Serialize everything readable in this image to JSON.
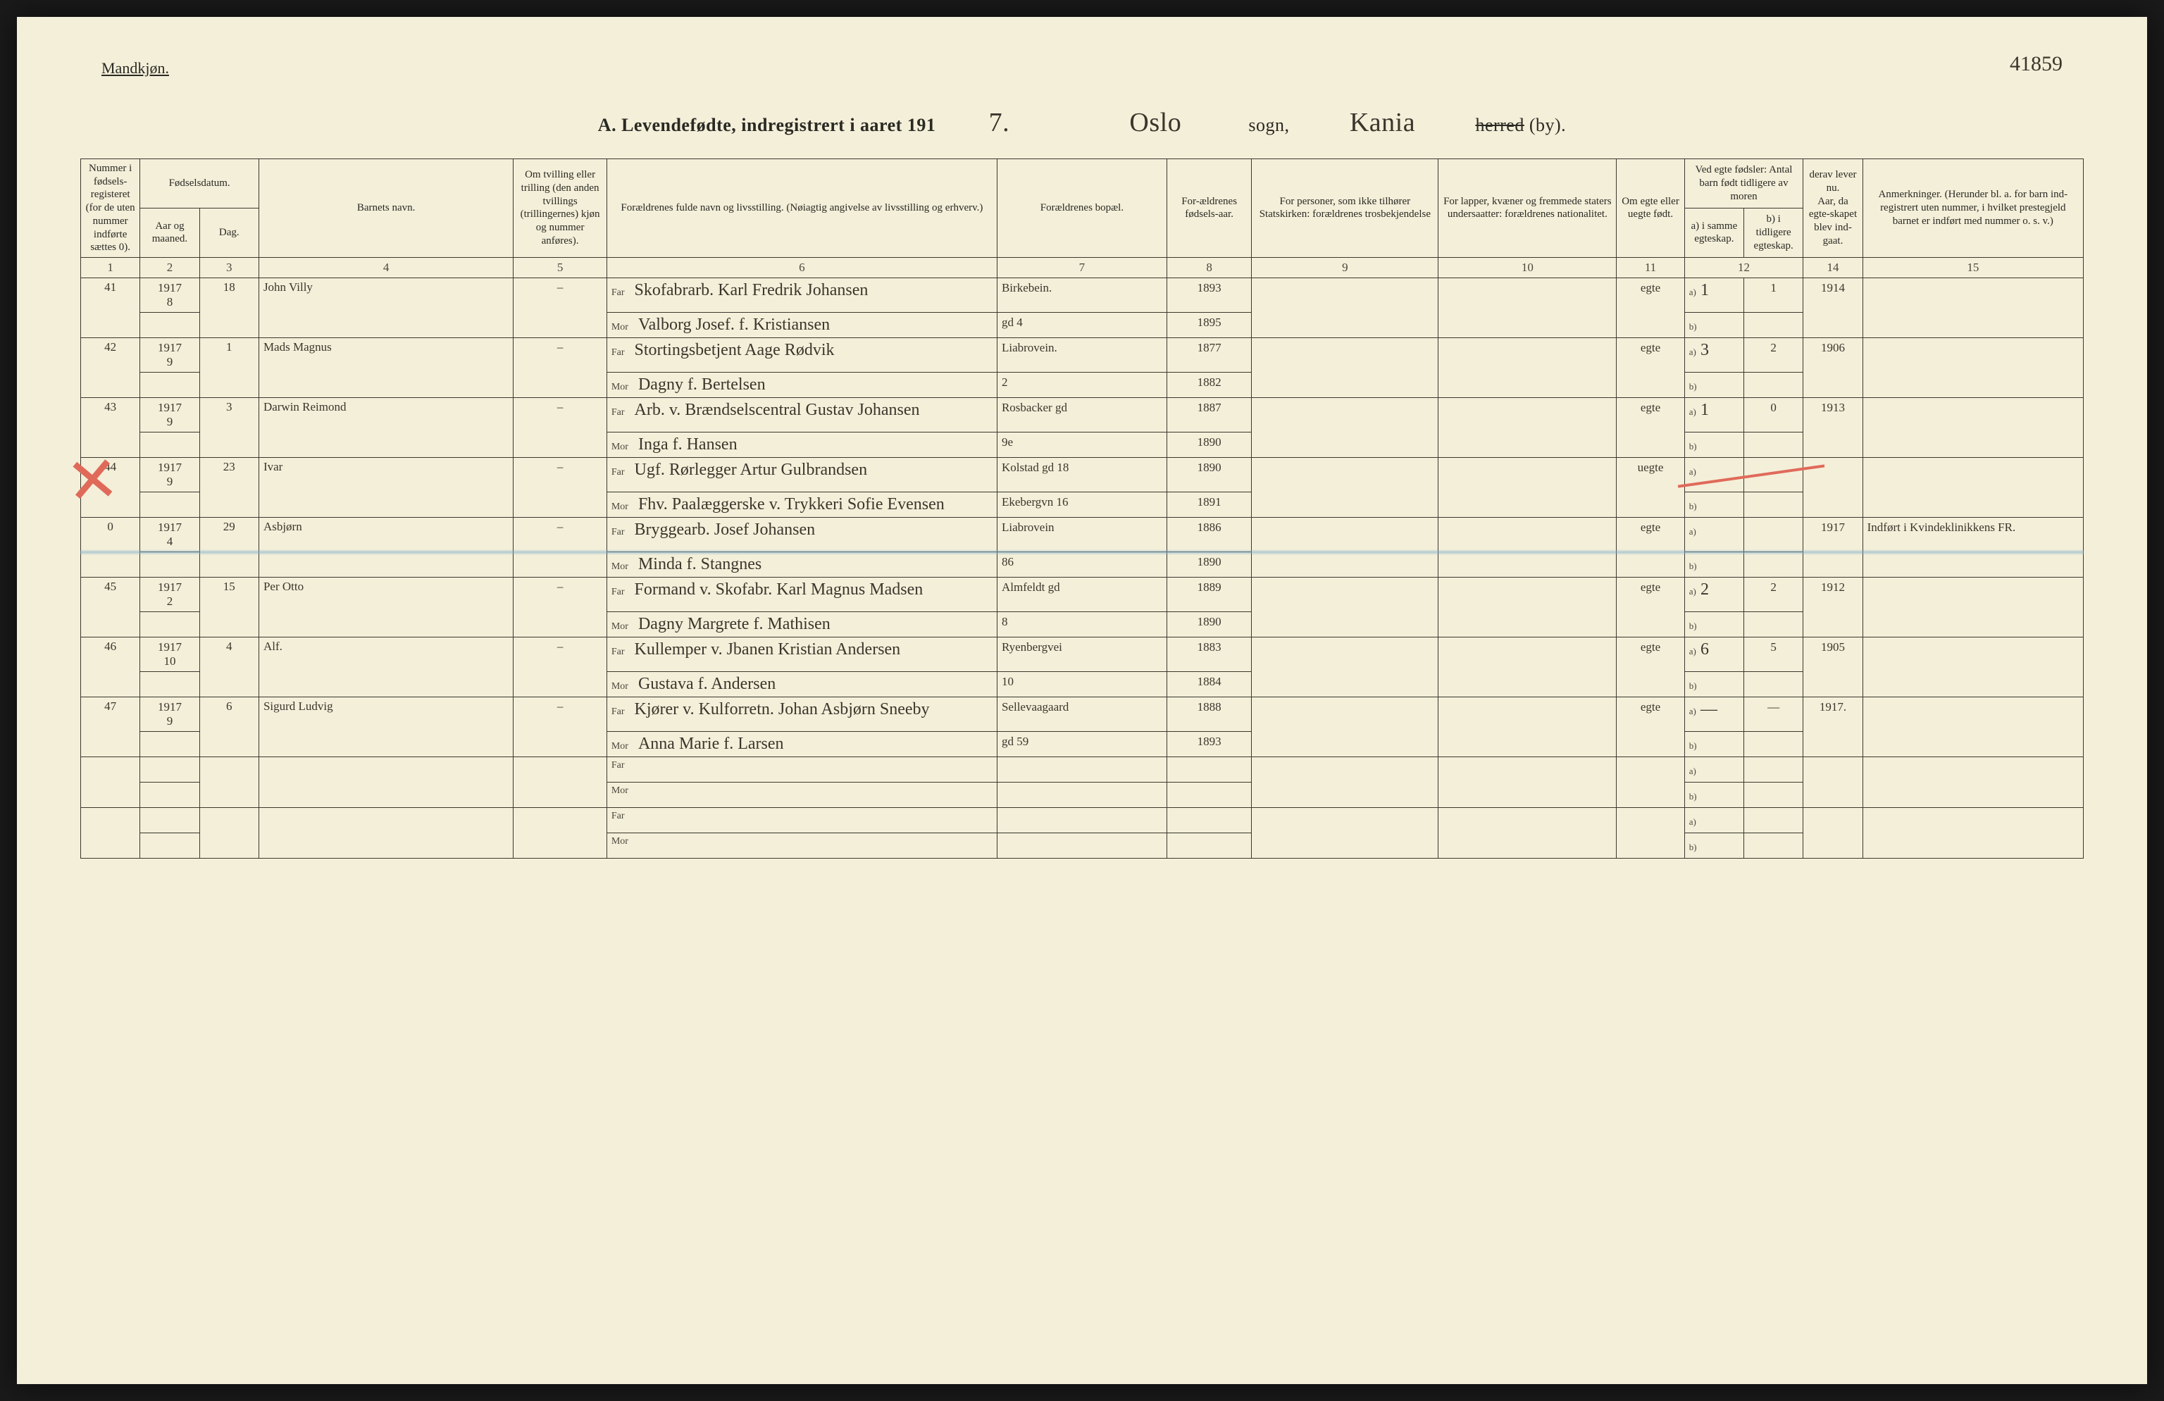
{
  "labels": {
    "mandkjon": "Mandkjøn.",
    "title_prefix": "A.  Levendefødte, indregistrert i aaret 191",
    "year_suffix": "7.",
    "sogn_word": "sogn,",
    "herred_word": "herred",
    "by_word": "(by).",
    "far": "Far",
    "mor": "Mor",
    "a_lbl": "a)",
    "b_lbl": "b)"
  },
  "title_handwritten": {
    "sogn": "Oslo",
    "herred": "Kania"
  },
  "page_number_hand": "41859",
  "headers": {
    "c1": "Nummer i fødsels-registeret (for de uten nummer indførte sættes 0).",
    "c2_group": "Fødselsdatum.",
    "c2": "Aar og maaned.",
    "c3": "Dag.",
    "c4": "Barnets navn.",
    "c5": "Om tvilling eller trilling (den anden tvillings (trillingernes) kjøn og nummer anføres).",
    "c6": "Forældrenes fulde navn og livsstilling. (Nøiagtig angivelse av livsstilling og erhverv.)",
    "c7": "Forældrenes bopæl.",
    "c8": "For-ældrenes fødsels-aar.",
    "c9": "For personer, som ikke tilhører Statskirken: forældrenes trosbekjendelse",
    "c10": "For lapper, kvæner og fremmede staters undersaatter: forældrenes nationalitet.",
    "c11": "Om egte eller uegte født.",
    "c12_group": "Ved egte fødsler: Antal barn født tidligere av moren",
    "c12a": "a) i samme egteskap.",
    "c12b": "b) i tidligere egteskap.",
    "c13": "derav lever nu.",
    "c14_top": "Aar, da egte-skapet blev ind-gaat.",
    "c15": "Anmerkninger. (Herunder bl. a. for barn ind-registrert uten nummer, i hvilket prestegjeld barnet er indført med nummer o. s. v.)"
  },
  "colnums": [
    "1",
    "2",
    "3",
    "4",
    "5",
    "6",
    "7",
    "8",
    "9",
    "10",
    "11",
    "12",
    "13",
    "14",
    "15"
  ],
  "rows": [
    {
      "num": "41",
      "year": "1917",
      "month": "8",
      "day": "18",
      "name": "John Villy",
      "twin": "–",
      "far": "Skofabrarb. Karl Fredrik Johansen",
      "far_addr": "Birkebein.",
      "far_year": "1893",
      "mor": "Valborg Josef. f. Kristiansen",
      "mor_addr": "gd 4",
      "mor_year": "1895",
      "c9": "",
      "c10": "",
      "egte": "egte",
      "a": "1",
      "a2": "1",
      "b": "",
      "aar": "1914",
      "anm": ""
    },
    {
      "num": "42",
      "year": "1917",
      "month": "9",
      "day": "1",
      "name": "Mads Magnus",
      "twin": "–",
      "far": "Stortingsbetjent Aage Rødvik",
      "far_addr": "Liabrovein.",
      "far_year": "1877",
      "mor": "Dagny f. Bertelsen",
      "mor_addr": "2",
      "mor_year": "1882",
      "c9": "",
      "c10": "",
      "egte": "egte",
      "a": "3",
      "a2": "2",
      "b": "",
      "aar": "1906",
      "anm": ""
    },
    {
      "num": "43",
      "year": "1917",
      "month": "9",
      "day": "3",
      "name": "Darwin Reimond",
      "twin": "–",
      "far": "Arb. v. Brændselscentral Gustav Johansen",
      "far_addr": "Rosbacker gd",
      "far_year": "1887",
      "mor": "Inga f. Hansen",
      "mor_addr": "9e",
      "mor_year": "1890",
      "c9": "",
      "c10": "",
      "egte": "egte",
      "a": "1",
      "a2": "0",
      "b": "",
      "aar": "1913",
      "anm": ""
    },
    {
      "num": "44",
      "year": "1917",
      "month": "9",
      "day": "23",
      "name": "Ivar",
      "twin": "–",
      "far": "Ugf. Rørlegger Artur Gulbrandsen",
      "far_addr": "Kolstad gd 18",
      "far_year": "1890",
      "mor": "Fhv. Paalæggerske v. Trykkeri Sofie Evensen",
      "mor_addr": "Ekebergvn 16",
      "mor_year": "1891",
      "c9": "",
      "c10": "",
      "egte": "uegte",
      "a": "",
      "a2": "",
      "b": "",
      "aar": "",
      "anm": ""
    },
    {
      "num": "0",
      "year": "1917",
      "month": "4",
      "day": "29",
      "name": "Asbjørn",
      "twin": "–",
      "far": "Bryggearb. Josef Johansen",
      "far_addr": "Liabrovein",
      "far_year": "1886",
      "mor": "Minda f. Stangnes",
      "mor_addr": "86",
      "mor_year": "1890",
      "c9": "",
      "c10": "",
      "egte": "egte",
      "a": "",
      "a2": "",
      "b": "",
      "aar": "1917",
      "anm": "Indført i Kvindeklinikkens FR."
    },
    {
      "num": "45",
      "year": "1917",
      "month": "2",
      "day": "15",
      "name": "Per Otto",
      "twin": "–",
      "far": "Formand v. Skofabr. Karl Magnus Madsen",
      "far_addr": "Almfeldt gd",
      "far_year": "1889",
      "mor": "Dagny Margrete f. Mathisen",
      "mor_addr": "8",
      "mor_year": "1890",
      "c9": "",
      "c10": "",
      "egte": "egte",
      "a": "2",
      "a2": "2",
      "b": "",
      "aar": "1912",
      "anm": ""
    },
    {
      "num": "46",
      "year": "1917",
      "month": "10",
      "day": "4",
      "name": "Alf.",
      "twin": "–",
      "far": "Kullemper v. Jbanen Kristian Andersen",
      "far_addr": "Ryenbergvei",
      "far_year": "1883",
      "mor": "Gustava f. Andersen",
      "mor_addr": "10",
      "mor_year": "1884",
      "c9": "",
      "c10": "",
      "egte": "egte",
      "a": "6",
      "a2": "5",
      "b": "",
      "aar": "1905",
      "anm": ""
    },
    {
      "num": "47",
      "year": "1917",
      "month": "9",
      "day": "6",
      "name": "Sigurd Ludvig",
      "twin": "–",
      "far": "Kjører v. Kulforretn. Johan Asbjørn Sneeby",
      "far_addr": "Sellevaagaard",
      "far_year": "1888",
      "mor": "Anna Marie f. Larsen",
      "mor_addr": "gd 59",
      "mor_year": "1893",
      "c9": "",
      "c10": "",
      "egte": "egte",
      "a": "—",
      "a2": "—",
      "b": "",
      "aar": "1917.",
      "anm": ""
    },
    {
      "num": "",
      "year": "",
      "month": "",
      "day": "",
      "name": "",
      "twin": "",
      "far": "",
      "far_addr": "",
      "far_year": "",
      "mor": "",
      "mor_addr": "",
      "mor_year": "",
      "c9": "",
      "c10": "",
      "egte": "",
      "a": "",
      "a2": "",
      "b": "",
      "aar": "",
      "anm": ""
    },
    {
      "num": "",
      "year": "",
      "month": "",
      "day": "",
      "name": "",
      "twin": "",
      "far": "",
      "far_addr": "",
      "far_year": "",
      "mor": "",
      "mor_addr": "",
      "mor_year": "",
      "c9": "",
      "c10": "",
      "egte": "",
      "a": "",
      "a2": "",
      "b": "",
      "aar": "",
      "anm": ""
    }
  ],
  "style": {
    "page_bg": "#f4efd9",
    "ink": "#2a2a24",
    "hand_ink": "#3a362c",
    "red": "#e06a5a",
    "blue": "rgba(120,170,200,0.55)",
    "border": "#3a372e",
    "header_font_size": 15,
    "body_font_size": 17,
    "hand_font_size": 30
  },
  "overlays": {
    "red_x_row_index": 3,
    "blue_line_row_index": 4
  }
}
